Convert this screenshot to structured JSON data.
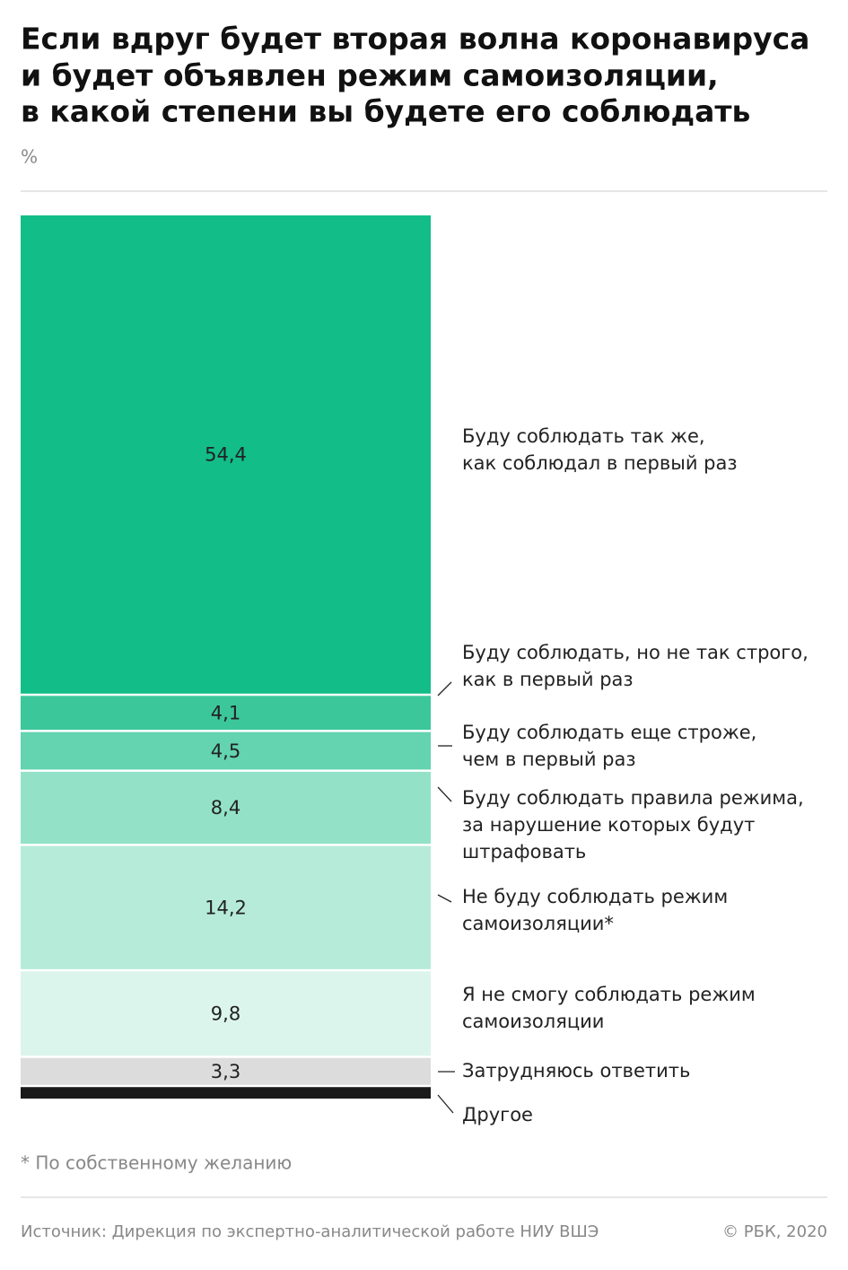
{
  "chart_data": {
    "type": "stacked-bar",
    "title": [
      "Если вдруг будет вторая волна коронавируса",
      "и будет объявлен режим самоизоляции,",
      "в какой степени вы будете его соблюдать"
    ],
    "unit": "%",
    "categories": [
      [
        "Буду соблюдать так же,",
        "как соблюдал в первый раз"
      ],
      [
        "Буду соблюдать, но не так строго,",
        "как в первый раз"
      ],
      [
        "Буду соблюдать еще строже,",
        "чем в первый раз"
      ],
      [
        "Буду соблюдать правила режима,",
        "за нарушение которых будут",
        "штрафовать"
      ],
      [
        "Не буду соблюдать режим",
        "самоизоляции*"
      ],
      [
        "Я не смогу соблюдать режим",
        "самоизоляции"
      ],
      [
        "Затрудняюсь ответить"
      ],
      [
        "Другое"
      ]
    ],
    "values": [
      54.4,
      4.1,
      4.5,
      8.4,
      14.2,
      9.8,
      3.3,
      1.3
    ],
    "value_labels": [
      "54,4",
      "4,1",
      "4,5",
      "8,4",
      "14,2",
      "9,8",
      "3,3",
      null
    ],
    "colors": [
      "#12bd88",
      "#3cc79b",
      "#63d3b0",
      "#93e2c8",
      "#b6ebda",
      "#dbf5ec",
      "#dcdcdc",
      "#1a1a1a"
    ],
    "footnote": "* По собственному желанию",
    "source": "Источник: Дирекция по экспертно-аналитической работе НИУ ВШЭ",
    "copyright": "© РБК, 2020"
  }
}
